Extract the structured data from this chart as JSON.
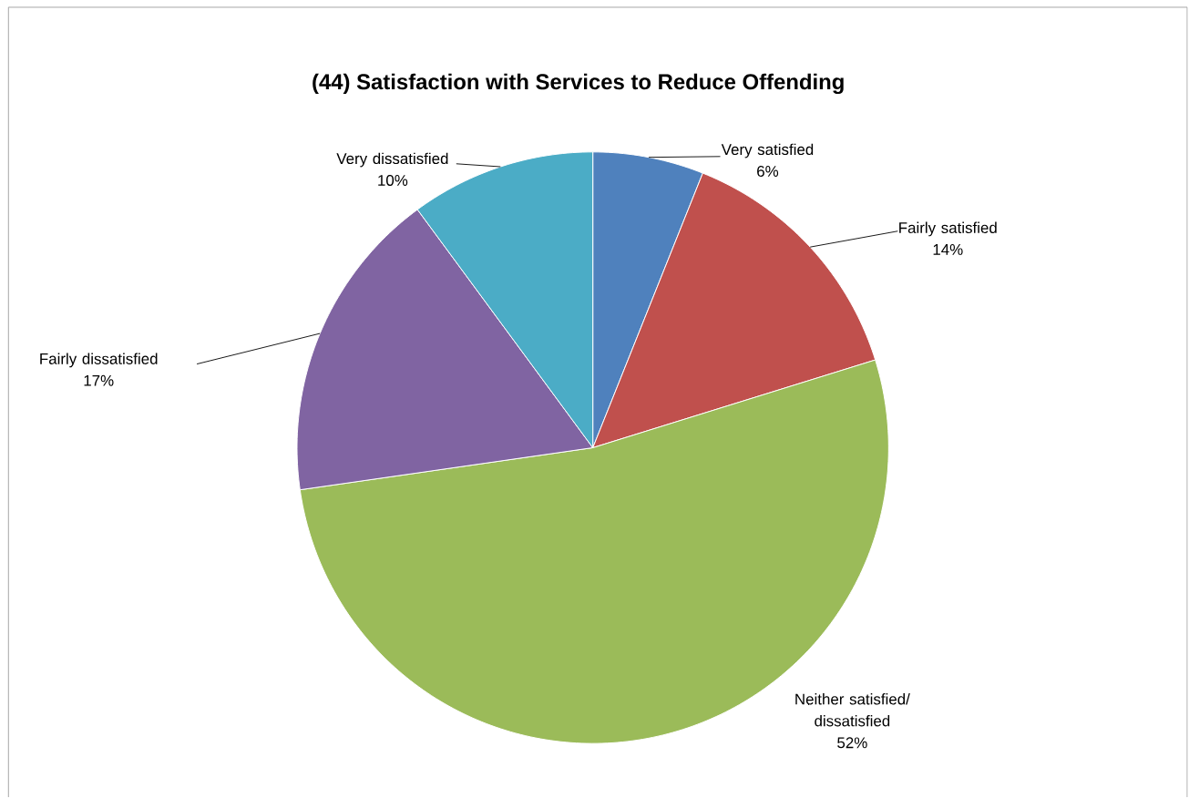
{
  "chart_data": {
    "type": "pie",
    "title": "(44) Satisfaction with Services to Reduce Offending",
    "categories": [
      "Very satisfied",
      "Fairly satisfied",
      "Neither satisfied/ dissatisfied",
      "Fairly dissatisfied",
      "Very dissatisfied"
    ],
    "values": [
      6,
      14,
      52,
      17,
      10
    ],
    "value_labels": [
      "6%",
      "14%",
      "52%",
      "17%",
      "10%"
    ],
    "colors": [
      "#4f81bd",
      "#c0504d",
      "#9bbb59",
      "#8064a2",
      "#4bacc6"
    ]
  }
}
